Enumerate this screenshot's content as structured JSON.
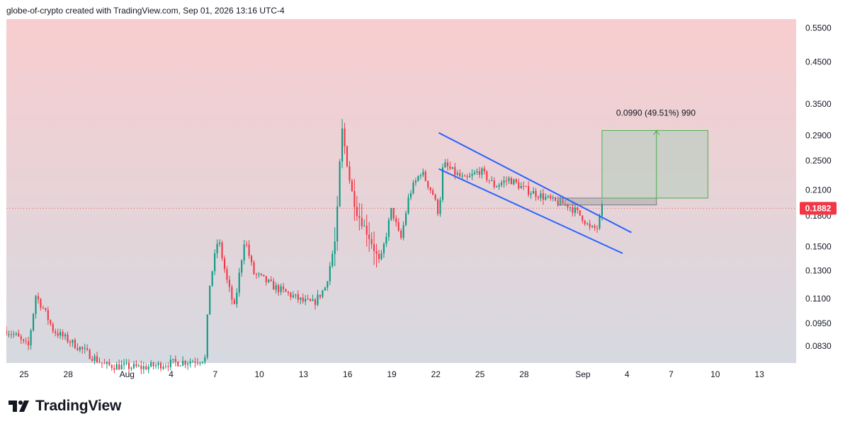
{
  "header": {
    "text": "globe-of-crypto created with TradingView.com, Sep 01, 2026 13:16 UTC-4"
  },
  "footer": {
    "brand": "TradingView",
    "logo_icon": "tradingview-logo-icon"
  },
  "colors": {
    "up": "#089981",
    "down": "#f23645",
    "wedge": "#2962ff",
    "price_tag": "#f23645",
    "bg_top": "#f8cdcf",
    "bg_bottom": "#d6d9e0",
    "projection_fill": "#c5cfc6",
    "projection_line": "#4caf50"
  },
  "chart_data": {
    "type": "candlestick",
    "scale": "log",
    "ylim": [
      0.075,
      0.58
    ],
    "y_ticks": [
      "0.5500",
      "0.4500",
      "0.3500",
      "0.2900",
      "0.2500",
      "0.2100",
      "0.1800",
      "0.1500",
      "0.1300",
      "0.1100",
      "0.0950",
      "0.0830"
    ],
    "x_ticks": [
      "25",
      "28",
      "Aug",
      "4",
      "7",
      "10",
      "13",
      "16",
      "19",
      "22",
      "25",
      "28",
      "Sep",
      "4",
      "7",
      "10",
      "13"
    ],
    "x_tick_days": [
      0,
      3,
      7,
      10,
      13,
      16,
      19,
      22,
      25,
      28,
      31,
      34,
      38,
      41,
      44,
      47,
      50
    ],
    "candles_per_day": 6,
    "x_start_day": -1.2,
    "x_end_day": 52.5,
    "last_price": "0.1882",
    "last_price_value": 0.1882,
    "anchors": [
      [
        -1.2,
        0.091
      ],
      [
        0.0,
        0.084
      ],
      [
        -0.5,
        0.088
      ],
      [
        0.3,
        0.083
      ],
      [
        0.8,
        0.112
      ],
      [
        1.3,
        0.104
      ],
      [
        2.0,
        0.091
      ],
      [
        3.0,
        0.086
      ],
      [
        4.0,
        0.081
      ],
      [
        5.5,
        0.074
      ],
      [
        8.0,
        0.073
      ],
      [
        10.0,
        0.075
      ],
      [
        11.5,
        0.076
      ],
      [
        12.3,
        0.077
      ],
      [
        12.6,
        0.118
      ],
      [
        13.2,
        0.158
      ],
      [
        13.8,
        0.122
      ],
      [
        14.3,
        0.104
      ],
      [
        15.0,
        0.158
      ],
      [
        15.6,
        0.128
      ],
      [
        16.2,
        0.124
      ],
      [
        17.0,
        0.118
      ],
      [
        18.0,
        0.113
      ],
      [
        19.0,
        0.108
      ],
      [
        19.7,
        0.107
      ],
      [
        20.5,
        0.118
      ],
      [
        21.2,
        0.158
      ],
      [
        21.6,
        0.305
      ],
      [
        22.2,
        0.215
      ],
      [
        22.6,
        0.185
      ],
      [
        23.5,
        0.158
      ],
      [
        24.2,
        0.135
      ],
      [
        25.0,
        0.188
      ],
      [
        25.6,
        0.155
      ],
      [
        26.2,
        0.205
      ],
      [
        27.0,
        0.235
      ],
      [
        27.8,
        0.205
      ],
      [
        28.2,
        0.182
      ],
      [
        28.5,
        0.245
      ],
      [
        29.3,
        0.232
      ],
      [
        30.0,
        0.222
      ],
      [
        31.0,
        0.236
      ],
      [
        32.0,
        0.215
      ],
      [
        33.0,
        0.224
      ],
      [
        34.0,
        0.211
      ],
      [
        35.0,
        0.204
      ],
      [
        36.0,
        0.196
      ],
      [
        37.0,
        0.192
      ],
      [
        38.0,
        0.178
      ],
      [
        38.5,
        0.166
      ],
      [
        39.0,
        0.168
      ],
      [
        39.3,
        0.189
      ]
    ]
  },
  "drawings": {
    "wedge_upper": {
      "start": [
        28.2,
        0.295
      ],
      "end": [
        41.3,
        0.163
      ]
    },
    "wedge_lower": {
      "start": [
        28.2,
        0.238
      ],
      "end": [
        40.7,
        0.144
      ]
    },
    "projection": {
      "label": "0.0990 (49.51%) 990",
      "x_range": [
        39.3,
        46.5
      ],
      "arrow_day": 43.0,
      "base_price": 0.2,
      "target_price": 0.299,
      "box_top": 0.299,
      "box_bottom": 0.2
    },
    "grey_box": {
      "x_range": [
        36.3,
        43.0
      ],
      "price_range": [
        0.192,
        0.2
      ]
    }
  }
}
